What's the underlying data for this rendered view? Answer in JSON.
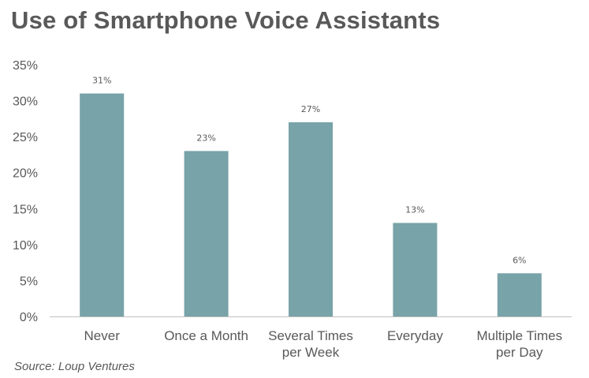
{
  "title": "Use of Smartphone Voice Assistants",
  "source": "Source: Loup Ventures",
  "colors": {
    "bar": "#78a3a8",
    "axis": "#bfbfbf",
    "text": "#595959"
  },
  "chart_data": {
    "type": "bar",
    "title": "Use of Smartphone Voice Assistants",
    "categories": [
      [
        "Never"
      ],
      [
        "Once a Month"
      ],
      [
        "Several Times",
        "per Week"
      ],
      [
        "Everyday"
      ],
      [
        "Multiple Times",
        "per Day"
      ]
    ],
    "values": [
      31,
      23,
      27,
      13,
      6
    ],
    "data_labels": [
      "31%",
      "23%",
      "27%",
      "13%",
      "6%"
    ],
    "y_ticks": [
      0,
      5,
      10,
      15,
      20,
      25,
      30,
      35
    ],
    "y_tick_labels": [
      "0%",
      "5%",
      "10%",
      "15%",
      "20%",
      "25%",
      "30%",
      "35%"
    ],
    "ylim": [
      0,
      35
    ],
    "grid": false,
    "legend": "none",
    "xlabel": "",
    "ylabel": ""
  }
}
